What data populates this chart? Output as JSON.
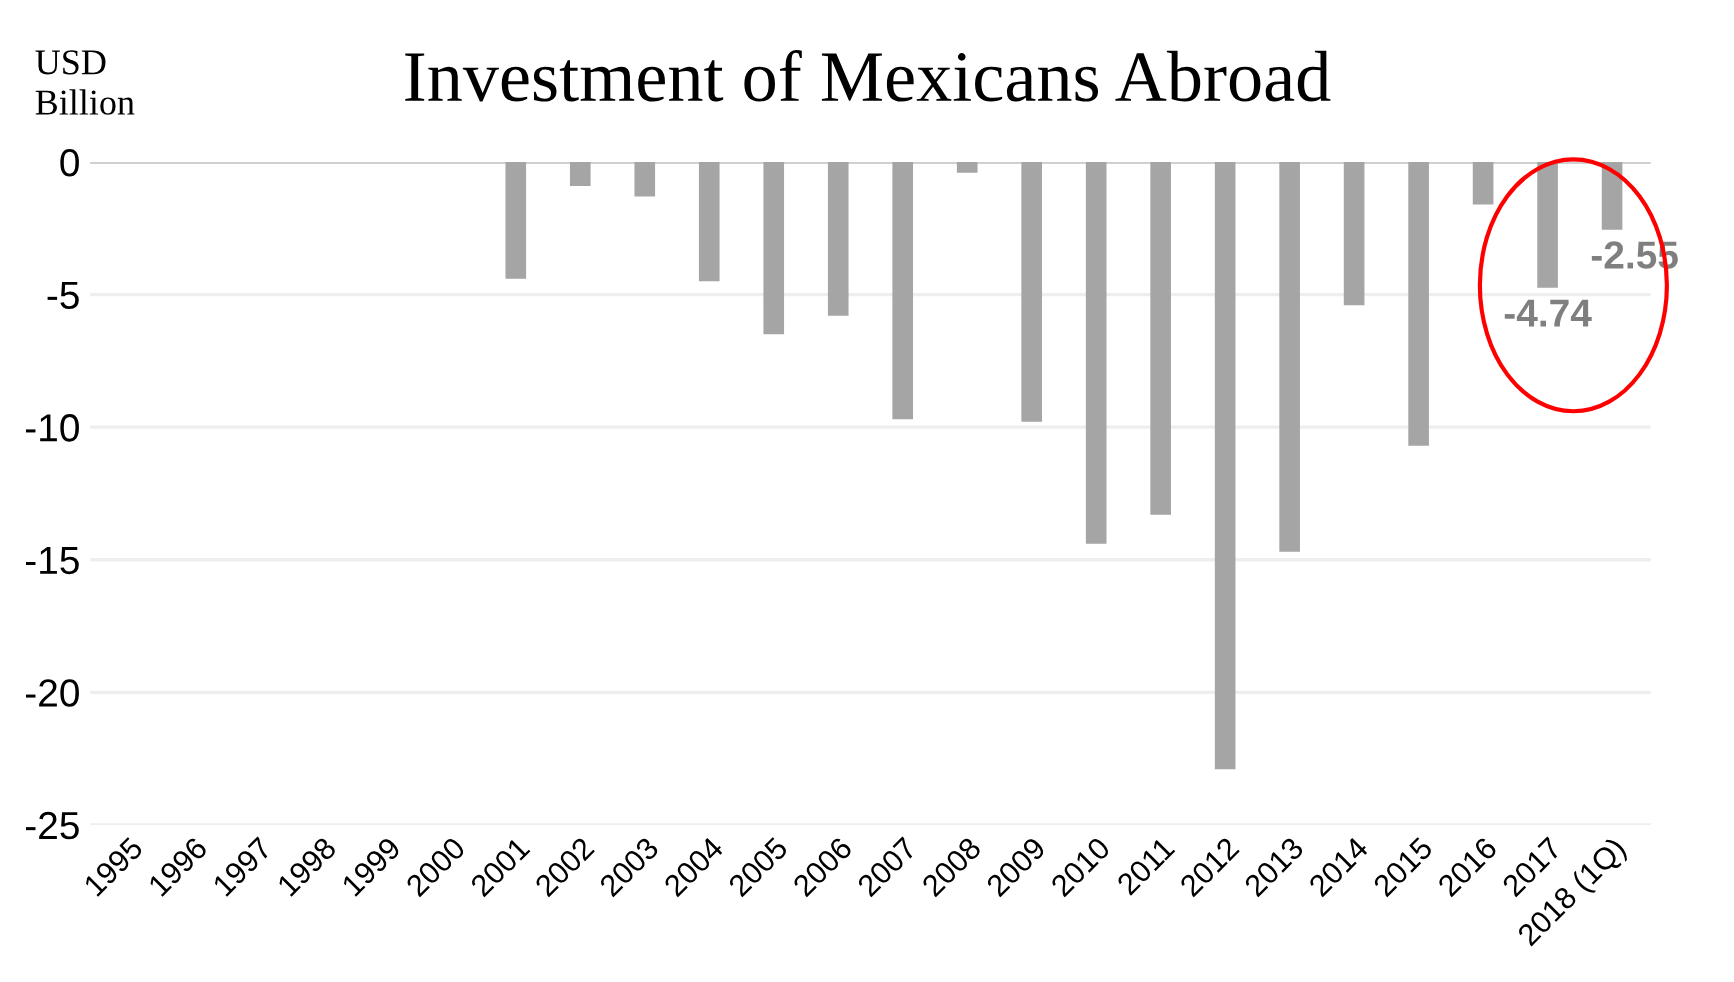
{
  "chart_data": {
    "type": "bar",
    "title": "Investment of Mexicans Abroad",
    "ylabel": "USD\nBillion",
    "categories": [
      "1995",
      "1996",
      "1997",
      "1998",
      "1999",
      "2000",
      "2001",
      "2002",
      "2003",
      "2004",
      "2005",
      "2006",
      "2007",
      "2008",
      "2009",
      "2010",
      "2011",
      "2012",
      "2013",
      "2014",
      "2015",
      "2016",
      "2017",
      "2018 (1Q)"
    ],
    "values": [
      null,
      null,
      null,
      null,
      null,
      null,
      -4.4,
      -0.9,
      -1.3,
      -4.5,
      -6.5,
      -5.8,
      -9.7,
      -0.4,
      -9.8,
      -14.4,
      -13.3,
      -22.9,
      -14.7,
      -5.4,
      -10.7,
      -1.6,
      -4.74,
      -2.55
    ],
    "value_labels": [
      null,
      null,
      null,
      null,
      null,
      null,
      null,
      null,
      null,
      null,
      null,
      null,
      null,
      null,
      null,
      null,
      null,
      null,
      null,
      null,
      null,
      null,
      "-4.74",
      "-2.55"
    ],
    "color": "#a5a5a5",
    "ylim": [
      -25,
      0
    ],
    "yticks": [
      {
        "value": 0,
        "label": "0"
      },
      {
        "value": -5,
        "label": "-5"
      },
      {
        "value": -10,
        "label": "-10"
      },
      {
        "value": -15,
        "label": "-15"
      },
      {
        "value": -20,
        "label": "-20"
      },
      {
        "value": -25,
        "label": "-25"
      }
    ],
    "grid": "y",
    "legend": false
  }
}
